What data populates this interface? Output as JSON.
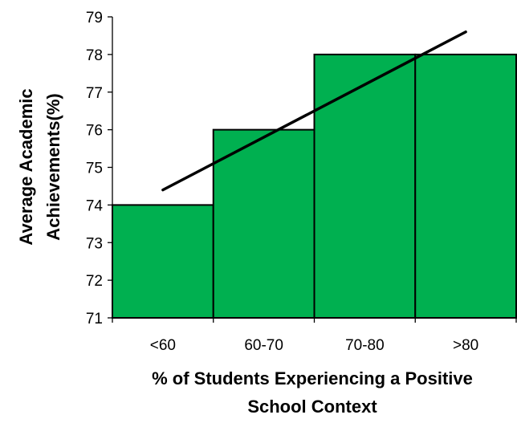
{
  "chart_data": {
    "type": "bar",
    "categories": [
      "<60",
      "60-70",
      "70-80",
      ">80"
    ],
    "values": [
      74,
      76,
      78,
      78
    ],
    "ylim": [
      71,
      79
    ],
    "yticks": [
      "71",
      "72",
      "73",
      "74",
      "75",
      "76",
      "77",
      "78",
      "79"
    ],
    "xlabel_lines": [
      "% of Students Experiencing a Positive",
      "School Context"
    ],
    "ylabel_lines": [
      "Average  Academic",
      "Achievements(%)"
    ],
    "trendline": {
      "x_start": 0.5,
      "y_start": 74.4,
      "x_end": 3.5,
      "y_end": 78.6
    },
    "grid": false,
    "legend": "none",
    "bar_color": "#00b050",
    "bar_edge_color": "#000000",
    "trendline_color": "#000000"
  }
}
